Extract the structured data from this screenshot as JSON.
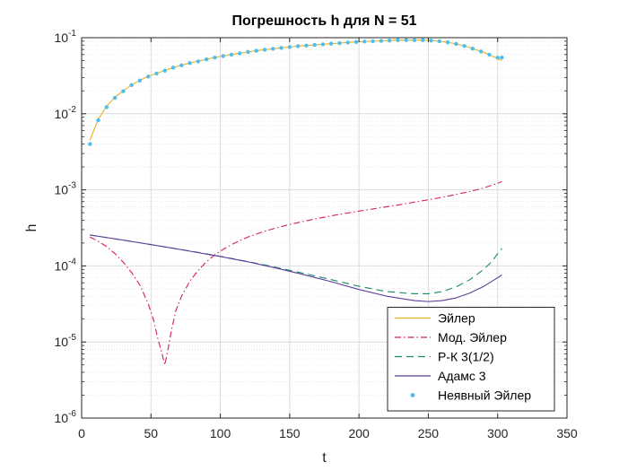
{
  "chart_data": {
    "type": "line",
    "title": "Погрешность h для N = 51",
    "xlabel": "t",
    "ylabel": "h",
    "xlim": [
      0,
      350
    ],
    "ylim": [
      1e-06,
      0.1
    ],
    "yscale": "log",
    "grid": true,
    "minor_grid": true,
    "legend_position": "bottom-right",
    "x_ticks": [
      0,
      50,
      100,
      150,
      200,
      250,
      300,
      350
    ],
    "x_tick_labels": [
      "0",
      "50",
      "100",
      "150",
      "200",
      "250",
      "300",
      "350"
    ],
    "y_ticks": [
      {
        "value": 1e-06,
        "base": "10",
        "exp": "-6"
      },
      {
        "value": 1e-05,
        "base": "10",
        "exp": "-5"
      },
      {
        "value": 0.0001,
        "base": "10",
        "exp": "-4"
      },
      {
        "value": 0.001,
        "base": "10",
        "exp": "-3"
      },
      {
        "value": 0.01,
        "base": "10",
        "exp": "-2"
      },
      {
        "value": 0.1,
        "base": "10",
        "exp": "-1"
      }
    ],
    "series": [
      {
        "name": "Эйлер",
        "style": "solid",
        "color": "#EDB120",
        "x": [
          6,
          12,
          18,
          24,
          30,
          36,
          42,
          48,
          54,
          60,
          66,
          72,
          78,
          84,
          90,
          96,
          102,
          108,
          114,
          120,
          126,
          132,
          138,
          144,
          150,
          156,
          162,
          168,
          174,
          180,
          186,
          192,
          198,
          204,
          210,
          216,
          222,
          228,
          234,
          240,
          246,
          252,
          258,
          264,
          270,
          276,
          282,
          288,
          294,
          300,
          303
        ],
        "y": [
          0.0045,
          0.0085,
          0.0125,
          0.0165,
          0.02,
          0.024,
          0.0275,
          0.031,
          0.034,
          0.037,
          0.0405,
          0.0435,
          0.0465,
          0.049,
          0.052,
          0.055,
          0.0575,
          0.06,
          0.0625,
          0.065,
          0.0675,
          0.0695,
          0.0715,
          0.0735,
          0.0755,
          0.0775,
          0.079,
          0.0805,
          0.082,
          0.0835,
          0.085,
          0.0865,
          0.088,
          0.089,
          0.09,
          0.091,
          0.092,
          0.093,
          0.093,
          0.093,
          0.093,
          0.092,
          0.09,
          0.087,
          0.083,
          0.078,
          0.072,
          0.066,
          0.06,
          0.053,
          0.05
        ]
      },
      {
        "name": "Мод. Эйлер",
        "style": "dashdot",
        "color": "#D81B60",
        "x": [
          6,
          12,
          18,
          24,
          30,
          36,
          42,
          48,
          52,
          55,
          58,
          60,
          62,
          65,
          68,
          72,
          78,
          84,
          90,
          96,
          102,
          108,
          114,
          120,
          130,
          140,
          150,
          160,
          170,
          180,
          190,
          200,
          210,
          220,
          230,
          240,
          250,
          260,
          270,
          280,
          290,
          300,
          303
        ],
        "y": [
          0.00024,
          0.00021,
          0.00018,
          0.000145,
          0.000112,
          8.2e-05,
          5.6e-05,
          3.2e-05,
          1.9e-05,
          1.1e-05,
          7e-06,
          5e-06,
          7.5e-06,
          1.5e-05,
          2.6e-05,
          4e-05,
          6.3e-05,
          8.7e-05,
          0.000113,
          0.00014,
          0.000165,
          0.00019,
          0.000215,
          0.00024,
          0.000278,
          0.000315,
          0.00035,
          0.000385,
          0.00042,
          0.000455,
          0.00049,
          0.000525,
          0.00056,
          0.0006,
          0.00064,
          0.00069,
          0.00074,
          0.0008,
          0.00087,
          0.00095,
          0.00106,
          0.00122,
          0.00128
        ]
      },
      {
        "name": "Р-К 3(1/2)",
        "style": "dashed",
        "color": "#1B8A6B",
        "x": [
          6,
          20,
          40,
          60,
          80,
          100,
          120,
          140,
          160,
          180,
          200,
          220,
          240,
          250,
          260,
          270,
          280,
          290,
          296,
          300,
          303
        ],
        "y": [
          0.000255,
          0.000233,
          0.000204,
          0.000178,
          0.000155,
          0.000134,
          0.000114,
          9.6e-05,
          8e-05,
          6.6e-05,
          5.4e-05,
          4.6e-05,
          4.3e-05,
          4.3e-05,
          4.6e-05,
          5.3e-05,
          6.6e-05,
          9e-05,
          0.000115,
          0.000145,
          0.00017
        ]
      },
      {
        "name": "Адамс 3",
        "style": "solid",
        "color": "#5E3C99",
        "x": [
          6,
          20,
          40,
          60,
          80,
          100,
          120,
          140,
          160,
          180,
          200,
          220,
          240,
          250,
          260,
          270,
          280,
          290,
          296,
          300,
          303
        ],
        "y": [
          0.000255,
          0.000233,
          0.000204,
          0.000178,
          0.000154,
          0.000133,
          0.000113,
          9.4e-05,
          7.7e-05,
          6.2e-05,
          4.9e-05,
          4e-05,
          3.5e-05,
          3.4e-05,
          3.5e-05,
          3.8e-05,
          4.4e-05,
          5.4e-05,
          6.3e-05,
          7e-05,
          7.6e-05
        ]
      },
      {
        "name": "Неявный Эйлер",
        "style": "dots",
        "color": "#4DBEEE",
        "x": [
          6,
          12,
          18,
          24,
          30,
          36,
          42,
          48,
          54,
          60,
          66,
          72,
          78,
          84,
          90,
          96,
          102,
          108,
          114,
          120,
          126,
          132,
          138,
          144,
          150,
          156,
          162,
          168,
          174,
          180,
          186,
          192,
          198,
          204,
          210,
          216,
          222,
          228,
          234,
          240,
          246,
          252,
          258,
          264,
          270,
          276,
          282,
          288,
          294,
          300,
          303
        ],
        "y": [
          0.004,
          0.0082,
          0.0122,
          0.0162,
          0.0198,
          0.0238,
          0.0273,
          0.0308,
          0.0338,
          0.0368,
          0.0403,
          0.0433,
          0.0463,
          0.0488,
          0.0518,
          0.0548,
          0.0573,
          0.0598,
          0.0623,
          0.0648,
          0.0673,
          0.0693,
          0.0713,
          0.0733,
          0.0753,
          0.0773,
          0.0788,
          0.0803,
          0.0818,
          0.0833,
          0.0848,
          0.0863,
          0.0878,
          0.0888,
          0.0898,
          0.0908,
          0.0918,
          0.0928,
          0.0928,
          0.0928,
          0.0928,
          0.0918,
          0.0898,
          0.0868,
          0.0828,
          0.0778,
          0.0718,
          0.0658,
          0.0598,
          0.0545,
          0.055
        ]
      }
    ]
  }
}
